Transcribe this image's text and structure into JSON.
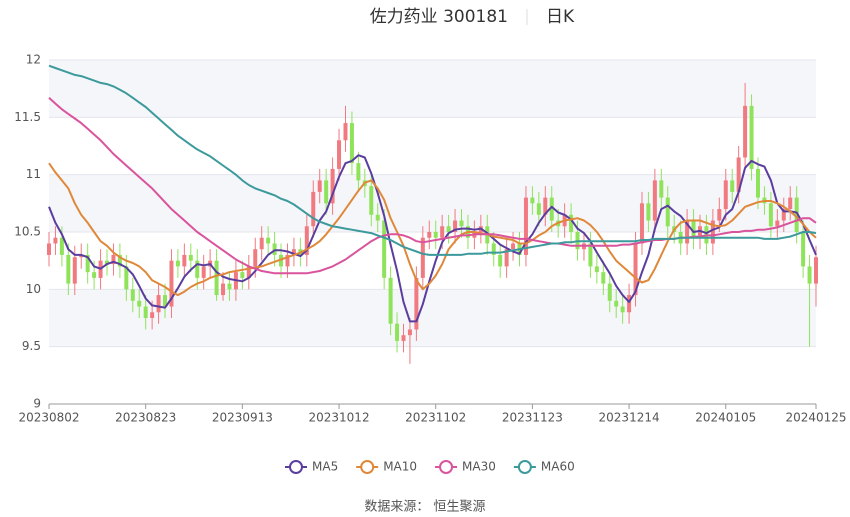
{
  "chart_data": {
    "type": "candlestick",
    "title": "佐力药业 300181",
    "subtitle": "日K",
    "source": "数据来源： 恒生聚源",
    "categories": [
      "20230802",
      null,
      null,
      null,
      null,
      null,
      null,
      null,
      null,
      null,
      null,
      null,
      null,
      null,
      null,
      "20230823",
      null,
      null,
      null,
      null,
      null,
      null,
      null,
      null,
      null,
      null,
      null,
      null,
      null,
      null,
      "20230913",
      null,
      null,
      null,
      null,
      null,
      null,
      null,
      null,
      null,
      null,
      null,
      null,
      null,
      null,
      "20231012",
      null,
      null,
      null,
      null,
      null,
      null,
      null,
      null,
      null,
      null,
      null,
      null,
      null,
      null,
      "20231102",
      null,
      null,
      null,
      null,
      null,
      null,
      null,
      null,
      null,
      null,
      null,
      null,
      null,
      null,
      "20231123",
      null,
      null,
      null,
      null,
      null,
      null,
      null,
      null,
      null,
      null,
      null,
      null,
      null,
      null,
      "20231214",
      null,
      null,
      null,
      null,
      null,
      null,
      null,
      null,
      null,
      null,
      null,
      null,
      null,
      null,
      "20240105",
      null,
      null,
      null,
      null,
      null,
      null,
      null,
      null,
      null,
      null,
      null,
      null,
      null,
      "20240125"
    ],
    "open": [
      10.3,
      10.4,
      10.45,
      10.3,
      10.05,
      10.28,
      10.3,
      10.15,
      10.1,
      10.25,
      10.22,
      10.3,
      10.2,
      10.0,
      9.9,
      9.85,
      9.75,
      9.8,
      9.95,
      9.85,
      10.25,
      10.2,
      10.3,
      10.25,
      10.1,
      10.2,
      10.25,
      9.95,
      10.05,
      10.0,
      10.15,
      10.1,
      10.2,
      10.35,
      10.45,
      10.4,
      10.3,
      10.2,
      10.3,
      10.35,
      10.3,
      10.55,
      10.85,
      10.95,
      10.75,
      11.05,
      11.3,
      11.45,
      11.1,
      10.95,
      10.9,
      10.65,
      10.6,
      10.1,
      9.7,
      9.55,
      9.6,
      9.65,
      10.1,
      10.45,
      10.5,
      10.45,
      10.55,
      10.5,
      10.6,
      10.55,
      10.45,
      10.5,
      10.55,
      10.4,
      10.3,
      10.2,
      10.35,
      10.4,
      10.3,
      10.8,
      10.75,
      10.65,
      10.8,
      10.6,
      10.55,
      10.65,
      10.5,
      10.35,
      10.4,
      10.2,
      10.15,
      10.05,
      9.9,
      9.85,
      9.8,
      9.95,
      10.4,
      10.75,
      10.6,
      10.95,
      10.8,
      10.55,
      10.5,
      10.4,
      10.6,
      10.45,
      10.55,
      10.4,
      10.6,
      10.7,
      10.95,
      10.85,
      11.15,
      11.6,
      11.05,
      10.8,
      10.75,
      10.55,
      10.6,
      10.7,
      10.8,
      10.5,
      10.2,
      10.05
    ],
    "close": [
      10.4,
      10.45,
      10.3,
      10.05,
      10.28,
      10.3,
      10.15,
      10.1,
      10.25,
      10.22,
      10.3,
      10.2,
      10.0,
      9.9,
      9.85,
      9.75,
      9.8,
      9.95,
      9.85,
      10.25,
      10.2,
      10.3,
      10.25,
      10.1,
      10.2,
      10.25,
      9.95,
      10.05,
      10.0,
      10.15,
      10.1,
      10.2,
      10.35,
      10.45,
      10.4,
      10.3,
      10.2,
      10.3,
      10.35,
      10.3,
      10.55,
      10.85,
      10.95,
      10.75,
      11.05,
      11.3,
      11.45,
      11.1,
      10.95,
      10.9,
      10.65,
      10.6,
      10.1,
      9.7,
      9.55,
      9.6,
      9.65,
      10.1,
      10.45,
      10.5,
      10.45,
      10.55,
      10.5,
      10.6,
      10.55,
      10.45,
      10.5,
      10.55,
      10.4,
      10.3,
      10.2,
      10.35,
      10.4,
      10.3,
      10.8,
      10.75,
      10.65,
      10.8,
      10.6,
      10.55,
      10.65,
      10.5,
      10.35,
      10.4,
      10.2,
      10.15,
      10.05,
      9.9,
      9.85,
      9.8,
      9.95,
      10.4,
      10.75,
      10.6,
      10.95,
      10.8,
      10.55,
      10.5,
      10.4,
      10.6,
      10.45,
      10.55,
      10.4,
      10.6,
      10.7,
      10.95,
      10.85,
      11.15,
      11.6,
      11.05,
      10.8,
      10.75,
      10.55,
      10.6,
      10.7,
      10.8,
      10.5,
      10.2,
      10.05,
      10.28
    ],
    "low": [
      10.2,
      10.3,
      10.2,
      9.95,
      9.95,
      10.18,
      10.05,
      10.0,
      10.0,
      10.12,
      10.12,
      10.1,
      9.9,
      9.8,
      9.75,
      9.65,
      9.65,
      9.7,
      9.75,
      9.75,
      10.1,
      10.1,
      10.15,
      10.0,
      10.0,
      10.1,
      9.9,
      9.9,
      9.9,
      9.9,
      10.0,
      10.0,
      10.1,
      10.25,
      10.3,
      10.2,
      10.1,
      10.1,
      10.2,
      10.2,
      10.2,
      10.45,
      10.75,
      10.65,
      10.65,
      10.95,
      11.2,
      11.0,
      10.85,
      10.8,
      10.55,
      10.5,
      10.0,
      9.6,
      9.45,
      9.45,
      9.35,
      9.55,
      10.0,
      10.35,
      10.35,
      10.35,
      10.4,
      10.4,
      10.45,
      10.35,
      10.35,
      10.4,
      10.3,
      10.2,
      10.1,
      10.1,
      10.25,
      10.2,
      10.2,
      10.65,
      10.55,
      10.55,
      10.5,
      10.45,
      10.45,
      10.4,
      10.25,
      10.25,
      10.1,
      10.05,
      9.95,
      9.8,
      9.75,
      9.7,
      9.7,
      9.85,
      10.3,
      10.5,
      10.5,
      10.7,
      10.45,
      10.4,
      10.3,
      10.3,
      10.35,
      10.35,
      10.3,
      10.3,
      10.5,
      10.6,
      10.75,
      10.75,
      11.05,
      10.95,
      10.7,
      10.65,
      10.45,
      10.45,
      10.5,
      10.6,
      10.4,
      10.1,
      9.5,
      9.85
    ],
    "high": [
      10.5,
      10.55,
      10.55,
      10.4,
      10.38,
      10.4,
      10.4,
      10.25,
      10.35,
      10.35,
      10.4,
      10.4,
      10.3,
      10.1,
      10.0,
      9.95,
      9.9,
      10.05,
      10.05,
      10.35,
      10.35,
      10.4,
      10.4,
      10.35,
      10.3,
      10.35,
      10.35,
      10.15,
      10.15,
      10.25,
      10.25,
      10.3,
      10.45,
      10.55,
      10.55,
      10.5,
      10.4,
      10.4,
      10.45,
      10.45,
      10.65,
      10.95,
      11.05,
      11.05,
      11.15,
      11.4,
      11.6,
      11.55,
      11.2,
      11.05,
      11.0,
      10.75,
      10.7,
      10.2,
      9.8,
      9.7,
      9.75,
      10.2,
      10.55,
      10.6,
      10.6,
      10.65,
      10.65,
      10.7,
      10.7,
      10.65,
      10.6,
      10.65,
      10.65,
      10.5,
      10.4,
      10.45,
      10.5,
      10.5,
      10.9,
      10.9,
      10.85,
      10.9,
      10.9,
      10.7,
      10.75,
      10.75,
      10.6,
      10.5,
      10.5,
      10.3,
      10.25,
      10.15,
      10.0,
      9.95,
      10.05,
      10.5,
      10.85,
      10.85,
      11.05,
      11.05,
      10.9,
      10.65,
      10.6,
      10.7,
      10.7,
      10.65,
      10.65,
      10.7,
      10.8,
      11.05,
      11.05,
      11.25,
      11.8,
      11.7,
      11.15,
      10.9,
      10.85,
      10.7,
      10.8,
      10.9,
      10.9,
      10.6,
      10.3,
      10.38
    ],
    "up_color": "#f07a80",
    "down_color": "#8fe35b",
    "series": [
      {
        "name": "MA5",
        "color": "#5a3d9e",
        "values": [
          10.72,
          10.58,
          10.48,
          10.35,
          10.3,
          10.3,
          10.28,
          10.2,
          10.18,
          10.22,
          10.24,
          10.22,
          10.19,
          10.13,
          10.03,
          9.92,
          9.86,
          9.85,
          9.84,
          9.92,
          10.01,
          10.11,
          10.17,
          10.22,
          10.21,
          10.22,
          10.15,
          10.11,
          10.09,
          10.08,
          10.07,
          10.1,
          10.16,
          10.23,
          10.3,
          10.34,
          10.34,
          10.33,
          10.31,
          10.29,
          10.34,
          10.47,
          10.6,
          10.68,
          10.83,
          10.98,
          11.1,
          11.12,
          11.17,
          11.15,
          11.01,
          10.84,
          10.64,
          10.39,
          10.16,
          9.89,
          9.72,
          9.72,
          9.87,
          10.07,
          10.25,
          10.41,
          10.49,
          10.52,
          10.53,
          10.53,
          10.52,
          10.53,
          10.49,
          10.44,
          10.39,
          10.36,
          10.33,
          10.31,
          10.41,
          10.48,
          10.58,
          10.66,
          10.72,
          10.67,
          10.65,
          10.61,
          10.53,
          10.49,
          10.42,
          10.32,
          10.23,
          10.14,
          10.03,
          9.95,
          9.89,
          9.98,
          10.15,
          10.3,
          10.53,
          10.7,
          10.73,
          10.68,
          10.64,
          10.57,
          10.5,
          10.51,
          10.49,
          10.52,
          10.54,
          10.65,
          10.7,
          10.85,
          11.06,
          11.12,
          11.09,
          11.07,
          10.95,
          10.75,
          10.68,
          10.68,
          10.67,
          10.57,
          10.43,
          10.3
        ]
      },
      {
        "name": "MA10",
        "color": "#e0883a",
        "values": [
          11.1,
          11.02,
          10.95,
          10.88,
          10.75,
          10.65,
          10.58,
          10.5,
          10.42,
          10.38,
          10.32,
          10.28,
          10.25,
          10.23,
          10.2,
          10.15,
          10.08,
          10.05,
          10.02,
          9.98,
          9.95,
          9.98,
          10.02,
          10.05,
          10.07,
          10.1,
          10.12,
          10.13,
          10.15,
          10.16,
          10.17,
          10.18,
          10.19,
          10.2,
          10.22,
          10.24,
          10.26,
          10.28,
          10.3,
          10.32,
          10.35,
          10.38,
          10.42,
          10.48,
          10.55,
          10.62,
          10.7,
          10.78,
          10.86,
          10.93,
          10.95,
          10.88,
          10.78,
          10.62,
          10.5,
          10.38,
          10.22,
          10.08,
          10.0,
          10.05,
          10.12,
          10.22,
          10.35,
          10.42,
          10.48,
          10.5,
          10.5,
          10.49,
          10.48,
          10.46,
          10.45,
          10.44,
          10.43,
          10.4,
          10.4,
          10.43,
          10.47,
          10.5,
          10.55,
          10.58,
          10.6,
          10.61,
          10.62,
          10.6,
          10.56,
          10.5,
          10.42,
          10.33,
          10.25,
          10.2,
          10.15,
          10.1,
          10.06,
          10.08,
          10.18,
          10.3,
          10.42,
          10.52,
          10.58,
          10.6,
          10.6,
          10.6,
          10.58,
          10.56,
          10.55,
          10.56,
          10.6,
          10.66,
          10.72,
          10.74,
          10.76,
          10.77,
          10.77,
          10.75,
          10.72,
          10.68,
          10.63,
          10.57,
          10.5,
          10.45
        ]
      },
      {
        "name": "MA30",
        "color": "#d9549c",
        "values": [
          11.67,
          11.62,
          11.57,
          11.53,
          11.49,
          11.45,
          11.4,
          11.35,
          11.3,
          11.24,
          11.18,
          11.13,
          11.08,
          11.03,
          10.98,
          10.93,
          10.88,
          10.82,
          10.76,
          10.7,
          10.65,
          10.6,
          10.55,
          10.5,
          10.46,
          10.42,
          10.38,
          10.34,
          10.3,
          10.26,
          10.23,
          10.2,
          10.18,
          10.16,
          10.15,
          10.14,
          10.14,
          10.14,
          10.14,
          10.14,
          10.14,
          10.15,
          10.16,
          10.18,
          10.2,
          10.23,
          10.26,
          10.3,
          10.34,
          10.38,
          10.42,
          10.45,
          10.47,
          10.48,
          10.48,
          10.47,
          10.45,
          10.42,
          10.41,
          10.42,
          10.43,
          10.44,
          10.45,
          10.46,
          10.47,
          10.47,
          10.48,
          10.48,
          10.48,
          10.48,
          10.47,
          10.46,
          10.45,
          10.44,
          10.44,
          10.43,
          10.42,
          10.41,
          10.4,
          10.4,
          10.39,
          10.38,
          10.38,
          10.38,
          10.38,
          10.38,
          10.38,
          10.38,
          10.38,
          10.39,
          10.39,
          10.4,
          10.41,
          10.42,
          10.43,
          10.43,
          10.44,
          10.44,
          10.45,
          10.45,
          10.46,
          10.46,
          10.47,
          10.47,
          10.48,
          10.49,
          10.5,
          10.5,
          10.51,
          10.51,
          10.52,
          10.52,
          10.53,
          10.54,
          10.56,
          10.58,
          10.6,
          10.62,
          10.62,
          10.58
        ]
      },
      {
        "name": "MA60",
        "color": "#3d9a9c",
        "values": [
          11.95,
          11.93,
          11.91,
          11.89,
          11.87,
          11.86,
          11.84,
          11.82,
          11.8,
          11.79,
          11.77,
          11.74,
          11.71,
          11.67,
          11.63,
          11.59,
          11.54,
          11.49,
          11.44,
          11.39,
          11.34,
          11.3,
          11.26,
          11.22,
          11.19,
          11.16,
          11.12,
          11.08,
          11.04,
          11.0,
          10.95,
          10.91,
          10.88,
          10.86,
          10.84,
          10.82,
          10.79,
          10.77,
          10.74,
          10.7,
          10.66,
          10.62,
          10.59,
          10.57,
          10.55,
          10.54,
          10.53,
          10.52,
          10.51,
          10.5,
          10.49,
          10.47,
          10.45,
          10.43,
          10.4,
          10.37,
          10.35,
          10.33,
          10.31,
          10.3,
          10.3,
          10.3,
          10.3,
          10.3,
          10.3,
          10.31,
          10.31,
          10.31,
          10.32,
          10.32,
          10.32,
          10.33,
          10.34,
          10.35,
          10.36,
          10.37,
          10.38,
          10.39,
          10.4,
          10.4,
          10.41,
          10.41,
          10.42,
          10.42,
          10.42,
          10.42,
          10.42,
          10.42,
          10.42,
          10.42,
          10.42,
          10.42,
          10.43,
          10.43,
          10.44,
          10.44,
          10.44,
          10.44,
          10.45,
          10.45,
          10.45,
          10.45,
          10.45,
          10.45,
          10.45,
          10.45,
          10.45,
          10.45,
          10.45,
          10.45,
          10.45,
          10.44,
          10.44,
          10.44,
          10.45,
          10.46,
          10.48,
          10.5,
          10.5,
          10.49
        ]
      }
    ],
    "ylim": [
      9,
      12
    ],
    "yticks": [
      9,
      9.5,
      10,
      10.5,
      11,
      11.5,
      12
    ],
    "grid": true
  }
}
